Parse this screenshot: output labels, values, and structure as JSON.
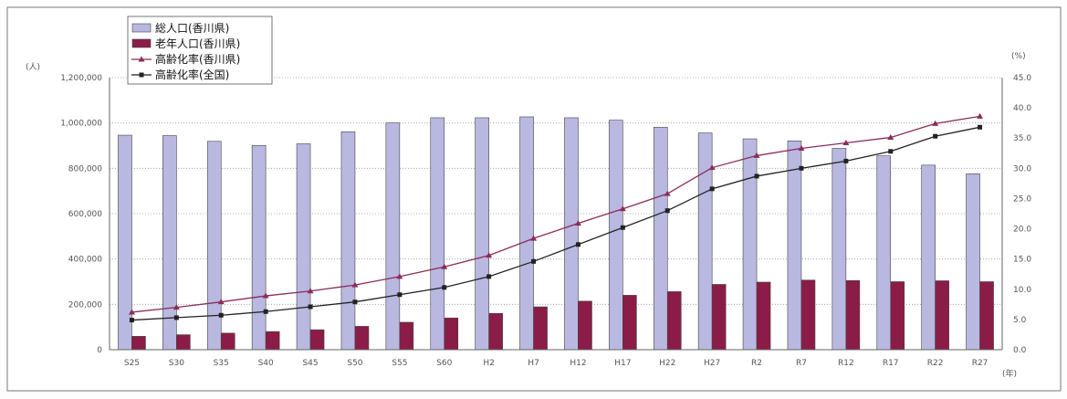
{
  "chart_data": {
    "type": "bar",
    "categories": [
      "S25",
      "S30",
      "S35",
      "S40",
      "S45",
      "S50",
      "S55",
      "S60",
      "H2",
      "H7",
      "H12",
      "H17",
      "H22",
      "H27",
      "R2",
      "R7",
      "R12",
      "R17",
      "R22",
      "R27"
    ],
    "series": [
      {
        "name": "総人口(香川県)",
        "type": "bar",
        "axis": "left",
        "color": "#b9b8e0",
        "values": [
          946000,
          944000,
          919000,
          901000,
          908000,
          961000,
          1000000,
          1023000,
          1023000,
          1027000,
          1023000,
          1012000,
          981000,
          956000,
          930000,
          921000,
          888000,
          855000,
          814000,
          776000
        ]
      },
      {
        "name": "老年人口(香川県)",
        "type": "bar",
        "axis": "left",
        "color": "#8b1c48",
        "values": [
          59000,
          66000,
          73000,
          80000,
          88000,
          103000,
          121000,
          140000,
          160000,
          189000,
          214000,
          240000,
          256000,
          288000,
          298000,
          307000,
          305000,
          300000,
          304000,
          300000
        ]
      },
      {
        "name": "高齢化率(香川県)",
        "type": "line",
        "axis": "right",
        "color": "#8b2c5a",
        "marker": "triangle",
        "values": [
          6.2,
          7.0,
          7.9,
          8.9,
          9.7,
          10.7,
          12.1,
          13.7,
          15.6,
          18.4,
          20.9,
          23.3,
          25.8,
          30.1,
          32.1,
          33.3,
          34.2,
          35.1,
          37.4,
          38.6
        ]
      },
      {
        "name": "高齢化率(全国)",
        "type": "line",
        "axis": "right",
        "color": "#222222",
        "marker": "square",
        "values": [
          4.9,
          5.3,
          5.7,
          6.3,
          7.1,
          7.9,
          9.1,
          10.3,
          12.1,
          14.6,
          17.4,
          20.2,
          23.0,
          26.6,
          28.7,
          30.0,
          31.2,
          32.8,
          35.3,
          36.8
        ]
      }
    ],
    "y_left": {
      "ticks": [
        "0",
        "200,000",
        "400,000",
        "600,000",
        "800,000",
        "1,000,000",
        "1,200,000"
      ],
      "range": [
        0,
        1200000
      ]
    },
    "y_right": {
      "ticks": [
        "0.0",
        "5.0",
        "10.0",
        "15.0",
        "20.0",
        "25.0",
        "30.0",
        "35.0",
        "40.0",
        "45.0"
      ],
      "range": [
        0,
        45
      ]
    },
    "y_left_unit": "(人)",
    "y_right_unit": "(%)",
    "x_unit": "(年)",
    "grid": "horizontal-dotted",
    "legend": "top-left"
  }
}
